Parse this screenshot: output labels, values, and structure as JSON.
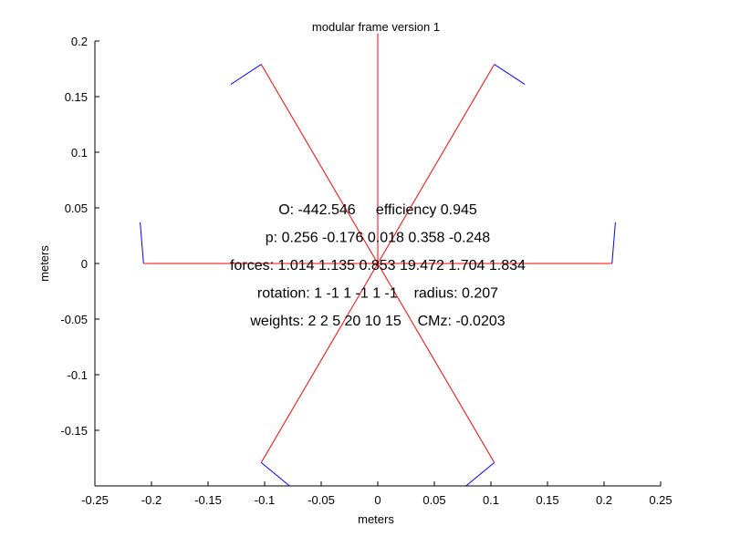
{
  "chart_data": {
    "type": "line",
    "title": "modular frame version 1",
    "xlabel": "meters",
    "ylabel": "meters",
    "xlim": [
      -0.25,
      0.25
    ],
    "ylim": [
      -0.2,
      0.2
    ],
    "xticks": [
      "-0.25",
      "-0.2",
      "-0.15",
      "-0.1",
      "-0.05",
      "0",
      "0.05",
      "0.1",
      "0.15",
      "0.2",
      "0.25"
    ],
    "yticks": [
      "-0.15",
      "-0.1",
      "-0.05",
      "0",
      "0.05",
      "0.1",
      "0.15",
      "0.2"
    ],
    "colors": {
      "link": "#ff0000",
      "foot": "#0000ff",
      "axis": "#000000"
    },
    "grid": false,
    "series": [
      {
        "color": "link",
        "x": [
          -0.207,
          0
        ],
        "y": [
          0,
          0
        ]
      },
      {
        "color": "foot",
        "x": [
          -0.207,
          -0.21
        ],
        "y": [
          0,
          0.037
        ]
      },
      {
        "color": "link",
        "x": [
          0.207,
          0
        ],
        "y": [
          0,
          0
        ]
      },
      {
        "color": "foot",
        "x": [
          0.207,
          0.21
        ],
        "y": [
          0,
          0.037
        ]
      },
      {
        "color": "link",
        "x": [
          -0.103,
          0
        ],
        "y": [
          0.179,
          0
        ]
      },
      {
        "color": "foot",
        "x": [
          -0.103,
          -0.13
        ],
        "y": [
          0.179,
          0.161
        ]
      },
      {
        "color": "link",
        "x": [
          0.103,
          0
        ],
        "y": [
          0.179,
          0
        ]
      },
      {
        "color": "foot",
        "x": [
          0.103,
          0.13
        ],
        "y": [
          0.179,
          0.161
        ]
      },
      {
        "color": "link",
        "x": [
          -0.103,
          0
        ],
        "y": [
          -0.179,
          0
        ]
      },
      {
        "color": "foot",
        "x": [
          -0.103,
          -0.078
        ],
        "y": [
          -0.179,
          -0.2
        ]
      },
      {
        "color": "link",
        "x": [
          0.103,
          0
        ],
        "y": [
          -0.179,
          0
        ]
      },
      {
        "color": "foot",
        "x": [
          0.103,
          0.078
        ],
        "y": [
          -0.179,
          -0.2
        ]
      },
      {
        "color": "link",
        "x": [
          0,
          0
        ],
        "y": [
          0,
          0.207
        ]
      }
    ],
    "annotations": [
      {
        "text": "O: -442.546     efficiency 0.945",
        "x": 0.0,
        "y": 0.049
      },
      {
        "text": "p: 0.256 -0.176 0.018 0.358 -0.248",
        "x": 0.0,
        "y": 0.024
      },
      {
        "text": "forces: 1.014 1.135 0.853 19.472 1.704 1.834",
        "x": 0.0,
        "y": -0.001
      },
      {
        "text": "rotation: 1 -1 1 -1 1 -1    radius: 0.207",
        "x": 0.0,
        "y": -0.026
      },
      {
        "text": "weights: 2 2 5 20 10 15    CMz: -0.0203",
        "x": 0.0,
        "y": -0.051
      }
    ]
  }
}
